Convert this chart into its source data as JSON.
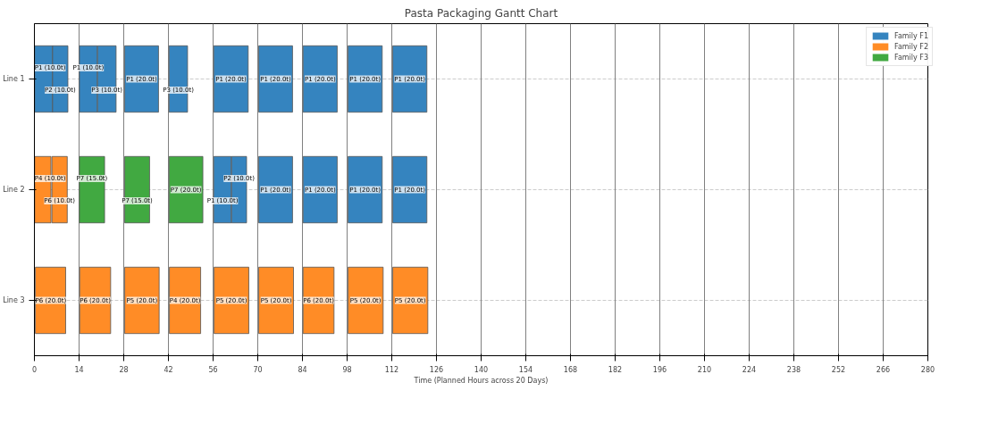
{
  "chart_data": {
    "type": "bar",
    "orientation": "horizontal",
    "title": "Pasta Packaging Gantt Chart",
    "xlabel": "Time (Planned Hours across 20 Days)",
    "categories": [
      "Line 1",
      "Line 2",
      "Line 3"
    ],
    "xlim": [
      0,
      280
    ],
    "xticks": [
      0,
      14,
      28,
      42,
      56,
      70,
      84,
      98,
      112,
      126,
      140,
      154,
      168,
      182,
      196,
      210,
      224,
      238,
      252,
      266,
      280
    ],
    "grid": "y",
    "legend": "top right",
    "series": [
      {
        "colors": [
          "#3584bf",
          "#ff8c26",
          "#ff8c26"
        ],
        "base": [
          0.1,
          0.1,
          0.3
        ],
        "values": [
          5.6,
          5.1,
          9.5
        ],
        "value_labels": [
          "P1 (10.0t)",
          "P4 (10.0t)",
          "P6 (20.0t)"
        ]
      },
      {
        "colors": [
          "#3584bf",
          "#ff8c26",
          "#ff8c26"
        ],
        "base": [
          5.7,
          5.5,
          14.2
        ],
        "values": [
          4.8,
          4.8,
          9.7
        ],
        "value_labels": [
          "P2 (10.0t)",
          "P6 (10.0t)",
          "P6 (20.0t)"
        ]
      },
      {
        "colors": [
          "#3584bf",
          "#41a941",
          "#ff8c26"
        ],
        "base": [
          14.1,
          14.1,
          28.3
        ],
        "values": [
          5.6,
          7.9,
          10.8
        ],
        "value_labels": [
          "P1 (10.0t)",
          "P7 (15.0t)",
          "P5 (20.0t)"
        ]
      },
      {
        "colors": [
          "#3584bf",
          "#41a941",
          "#ff8c26"
        ],
        "base": [
          19.8,
          28.3,
          42.3
        ],
        "values": [
          5.8,
          7.8,
          9.8
        ],
        "value_labels": [
          "P3 (10.0t)",
          "P7 (15.0t)",
          "P4 (20.0t)"
        ]
      },
      {
        "colors": [
          "#3584bf",
          "#41a941",
          "#ff8c26"
        ],
        "base": [
          28.3,
          42.2,
          56.3
        ],
        "values": [
          10.6,
          10.6,
          10.9
        ],
        "value_labels": [
          "P1 (20.0t)",
          "P7 (20.0t)",
          "P5 (20.0t)"
        ]
      },
      {
        "colors": [
          "#3584bf",
          "#3584bf",
          "#ff8c26"
        ],
        "base": [
          42.2,
          56.2,
          70.3
        ],
        "values": [
          5.8,
          5.5,
          10.9
        ],
        "value_labels": [
          "P3 (10.0t)",
          "P1 (10.0t)",
          "P5 (20.0t)"
        ]
      },
      {
        "colors": [
          "#3584bf",
          "#3584bf",
          "#ff8c26"
        ],
        "base": [
          56.2,
          61.8,
          84.2
        ],
        "values": [
          10.8,
          4.7,
          9.7
        ],
        "value_labels": [
          "P1 (20.0t)",
          "P2 (10.0t)",
          "P6 (20.0t)"
        ]
      },
      {
        "colors": [
          "#3584bf",
          "#3584bf",
          "#ff8c26"
        ],
        "base": [
          70.3,
          70.3,
          98.3
        ],
        "values": [
          10.6,
          10.6,
          11.0
        ],
        "value_labels": [
          "P1 (20.0t)",
          "P1 (20.0t)",
          "P5 (20.0t)"
        ]
      },
      {
        "colors": [
          "#3584bf",
          "#3584bf",
          "#ff8c26"
        ],
        "base": [
          84.2,
          84.2,
          112.3
        ],
        "values": [
          10.7,
          10.7,
          11.0
        ],
        "value_labels": [
          "P1 (20.0t)",
          "P1 (20.0t)",
          "P5 (20.0t)"
        ]
      },
      {
        "colors": [
          "#3584bf",
          "#3584bf",
          null
        ],
        "base": [
          98.3,
          98.3,
          null
        ],
        "values": [
          10.7,
          10.7,
          null
        ],
        "value_labels": [
          "P1 (20.0t)",
          "P1 (20.0t)",
          null
        ]
      },
      {
        "colors": [
          "#3584bf",
          "#3584bf",
          null
        ],
        "base": [
          112.3,
          112.3,
          null
        ],
        "values": [
          10.7,
          10.7,
          null
        ],
        "value_labels": [
          "P1 (20.0t)",
          "P1 (20.0t)",
          null
        ]
      },
      {
        "name": "Family F1",
        "color": "#3584bf",
        "values": [
          null,
          null,
          null
        ]
      },
      {
        "name": "Family F2",
        "color": "#ff8c26",
        "values": [
          null,
          null,
          null
        ]
      },
      {
        "name": "Family F3",
        "color": "#41a941",
        "values": [
          null,
          null,
          null
        ]
      }
    ],
    "ref_lines": [
      {
        "axis": "x",
        "value": 14,
        "color": "#808080"
      },
      {
        "axis": "x",
        "value": 28,
        "color": "#808080"
      },
      {
        "axis": "x",
        "value": 42,
        "color": "#808080"
      },
      {
        "axis": "x",
        "value": 56,
        "color": "#808080"
      },
      {
        "axis": "x",
        "value": 70,
        "color": "#808080"
      },
      {
        "axis": "x",
        "value": 84,
        "color": "#808080"
      },
      {
        "axis": "x",
        "value": 98,
        "color": "#808080"
      },
      {
        "axis": "x",
        "value": 112,
        "color": "#808080"
      },
      {
        "axis": "x",
        "value": 126,
        "color": "#808080"
      },
      {
        "axis": "x",
        "value": 140,
        "color": "#808080"
      },
      {
        "axis": "x",
        "value": 154,
        "color": "#808080"
      },
      {
        "axis": "x",
        "value": 168,
        "color": "#808080"
      },
      {
        "axis": "x",
        "value": 182,
        "color": "#808080"
      },
      {
        "axis": "x",
        "value": 196,
        "color": "#808080"
      },
      {
        "axis": "x",
        "value": 210,
        "color": "#808080"
      },
      {
        "axis": "x",
        "value": 224,
        "color": "#808080"
      },
      {
        "axis": "x",
        "value": 238,
        "color": "#808080"
      },
      {
        "axis": "x",
        "value": 252,
        "color": "#808080"
      },
      {
        "axis": "x",
        "value": 266,
        "color": "#808080"
      }
    ]
  }
}
